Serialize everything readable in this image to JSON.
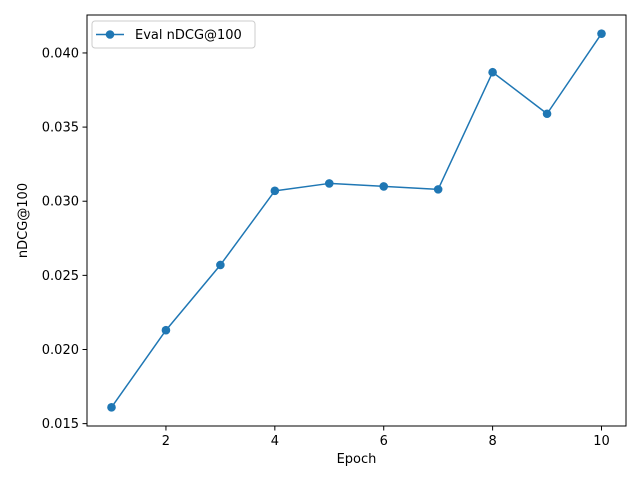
{
  "chart_data": {
    "type": "line",
    "title": "",
    "xlabel": "Epoch",
    "ylabel": "nDCG@100",
    "x": [
      1,
      2,
      3,
      4,
      5,
      6,
      7,
      8,
      9,
      10
    ],
    "series": [
      {
        "name": "Eval nDCG@100",
        "color": "#1f77b4",
        "marker": "circle",
        "values": [
          0.0161,
          0.0213,
          0.0257,
          0.0307,
          0.0312,
          0.031,
          0.0308,
          0.0387,
          0.0359,
          0.0413
        ]
      }
    ],
    "xlim": [
      0.55,
      10.45
    ],
    "ylim": [
      0.01484,
      0.04256
    ],
    "xticks": [
      2,
      4,
      6,
      8,
      10
    ],
    "xtick_labels": [
      "2",
      "4",
      "6",
      "8",
      "10"
    ],
    "yticks": [
      0.015,
      0.02,
      0.025,
      0.03,
      0.035,
      0.04
    ],
    "ytick_labels": [
      "0.015",
      "0.020",
      "0.025",
      "0.030",
      "0.035",
      "0.040"
    ],
    "grid": false,
    "legend_position": "top-left"
  }
}
